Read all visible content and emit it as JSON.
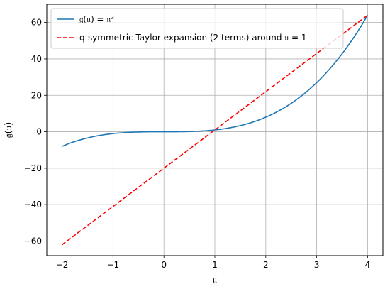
{
  "chart_data": {
    "type": "line",
    "title": "",
    "xlabel": "𝔲",
    "ylabel": "𝔤(𝔲)",
    "xlim": [
      -2.3,
      4.3
    ],
    "ylim": [
      -68,
      70
    ],
    "grid": true,
    "legend_position": "top-left",
    "x_ticks": [
      -2,
      -1,
      0,
      1,
      2,
      3,
      4
    ],
    "x_tick_labels": [
      "−2",
      "−1",
      "0",
      "1",
      "2",
      "3",
      "4"
    ],
    "y_ticks": [
      -60,
      -40,
      -20,
      0,
      20,
      40,
      60
    ],
    "y_tick_labels": [
      "−60",
      "−40",
      "−20",
      "0",
      "20",
      "40",
      "60"
    ],
    "series": [
      {
        "name": "𝔤(𝔲) = 𝔲³",
        "style": "solid",
        "color": "#1f77b4",
        "x": [
          -2.0,
          -1.5,
          -1.0,
          -0.5,
          0.0,
          0.5,
          1.0,
          1.5,
          2.0,
          2.5,
          3.0,
          3.5,
          4.0
        ],
        "y": [
          -8.0,
          -3.375,
          -1.0,
          -0.125,
          0.0,
          0.125,
          1.0,
          3.375,
          8.0,
          15.625,
          27.0,
          42.875,
          64.0
        ]
      },
      {
        "name": "q-symmetric Taylor expansion (2 terms) around 𝔲 = 1",
        "style": "dashed",
        "color": "#ff0000",
        "x": [
          -2.0,
          4.0
        ],
        "y": [
          -62.0,
          64.0
        ]
      }
    ]
  }
}
